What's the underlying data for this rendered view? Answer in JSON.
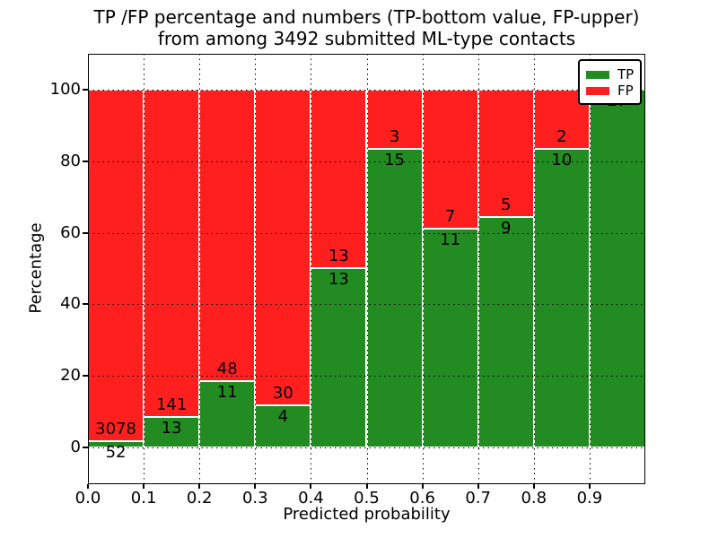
{
  "figure": {
    "title_line1": "TP /FP percentage and numbers (TP-bottom value, FP-upper)",
    "title_line2": "from among 3492 submitted ML-type contacts"
  },
  "chart_data": {
    "type": "bar",
    "subtype": "stacked-percentage",
    "title": "TP /FP percentage and numbers (TP-bottom value, FP-upper)\nfrom among 3492 submitted ML-type contacts",
    "xlabel": "Predicted probability",
    "ylabel": "Percentage",
    "total_contacts": 3492,
    "bin_edges": [
      0.0,
      0.1,
      0.2,
      0.3,
      0.4,
      0.5,
      0.6,
      0.7,
      0.8,
      0.9,
      1.0
    ],
    "series": [
      {
        "name": "TP",
        "color": "#228b22",
        "values": [
          52,
          13,
          11,
          4,
          13,
          15,
          11,
          9,
          10,
          27
        ]
      },
      {
        "name": "FP",
        "color": "#ff1f1f",
        "values": [
          3078,
          141,
          48,
          30,
          13,
          3,
          7,
          5,
          2,
          0
        ]
      }
    ],
    "tp_percentages": [
      1.66,
      8.44,
      18.64,
      11.76,
      50.0,
      83.33,
      61.11,
      64.29,
      83.33,
      100.0
    ],
    "bar_labels": {
      "tp": [
        "52",
        "13",
        "11",
        "4",
        "13",
        "15",
        "11",
        "9",
        "10",
        "27"
      ],
      "fp": [
        "3078",
        "141",
        "48",
        "30",
        "13",
        "3",
        "7",
        "5",
        "2",
        ""
      ]
    },
    "xticks": [
      "0.0",
      "0.1",
      "0.2",
      "0.3",
      "0.4",
      "0.5",
      "0.6",
      "0.7",
      "0.8",
      "0.9"
    ],
    "yticks": [
      "0",
      "20",
      "40",
      "60",
      "80",
      "100"
    ],
    "xlim": [
      0.0,
      1.0
    ],
    "ylim": [
      -10.3,
      110.0
    ],
    "grid": true,
    "legend": {
      "position": "upper-right",
      "entries": [
        {
          "label": "TP",
          "color": "#228b22"
        },
        {
          "label": "FP",
          "color": "#ff1f1f"
        }
      ]
    }
  }
}
